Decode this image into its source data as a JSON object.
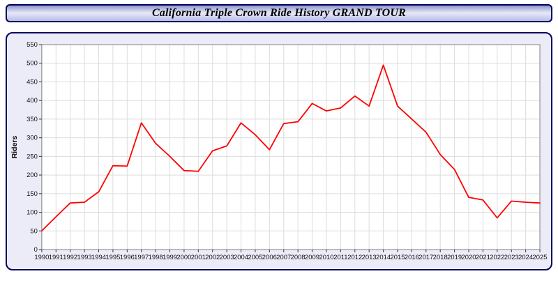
{
  "page": {
    "title": "California Triple Crown Ride History GRAND TOUR"
  },
  "colors": {
    "line": "#ff0000",
    "panel_border": "#00005e",
    "panel_bg": "#ebecf7",
    "plot_bg": "#ffffff",
    "grid": "#dcdcdc",
    "axis": "#808080",
    "tick_text": "#111111"
  },
  "chart_data": {
    "type": "line",
    "title": "California Triple Crown Ride History GRAND TOUR",
    "xlabel": "",
    "ylabel": "Riders",
    "ylim": [
      0,
      550
    ],
    "ytick_step": 50,
    "grid": true,
    "legend_position": "none",
    "x": [
      "1990",
      "1991",
      "1992",
      "1993",
      "1994",
      "1995",
      "1996",
      "1997",
      "1998",
      "1999",
      "2000",
      "2001",
      "2002",
      "2003",
      "2004",
      "2005",
      "2006",
      "2007",
      "2008",
      "2009",
      "2010",
      "2011",
      "2012",
      "2013",
      "2014",
      "2015",
      "2016",
      "2017",
      "2018",
      "2019",
      "2020",
      "2021",
      "2022",
      "2023",
      "2024",
      "2025"
    ],
    "series": [
      {
        "name": "Riders",
        "color": "#ff0000",
        "values": [
          50,
          88,
          125,
          127,
          155,
          225,
          224,
          340,
          285,
          250,
          212,
          210,
          265,
          278,
          340,
          308,
          268,
          338,
          343,
          392,
          372,
          380,
          412,
          385,
          495,
          385,
          350,
          315,
          255,
          215,
          140,
          133,
          85,
          130,
          127,
          125
        ]
      }
    ]
  }
}
